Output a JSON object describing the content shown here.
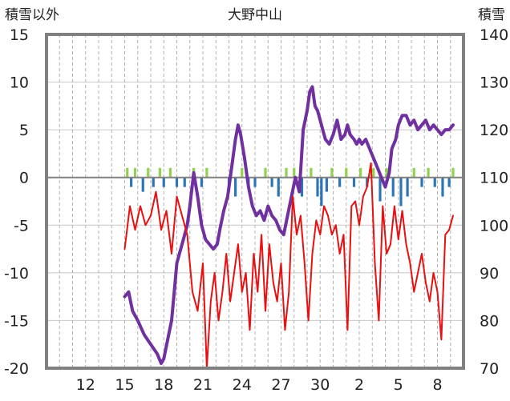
{
  "chart_data": {
    "type": "line",
    "title": "大野中山",
    "left_axis": {
      "label": "積雪以外",
      "ylim": [
        -20,
        15
      ],
      "ticks": [
        15,
        10,
        5,
        0,
        -5,
        -10,
        -15,
        -20
      ]
    },
    "right_axis": {
      "label": "積雪",
      "ylim": [
        70,
        140
      ],
      "ticks": [
        140,
        130,
        120,
        110,
        100,
        90,
        80,
        70
      ]
    },
    "x_ticks": [
      {
        "label": "12",
        "day": 3
      },
      {
        "label": "15",
        "day": 6
      },
      {
        "label": "18",
        "day": 9
      },
      {
        "label": "21",
        "day": 12
      },
      {
        "label": "24",
        "day": 15
      },
      {
        "label": "27",
        "day": 18
      },
      {
        "label": "30",
        "day": 21
      },
      {
        "label": "2",
        "day": 24
      },
      {
        "label": "5",
        "day": 27
      },
      {
        "label": "8",
        "day": 30
      }
    ],
    "x_range": [
      0,
      32
    ],
    "grid": true,
    "colors": {
      "snow_depth": "#7030A0",
      "temperature": "#E81010",
      "positive_bars": "#92D050",
      "negative_bars": "#2E75B6"
    },
    "series": [
      {
        "axis": "right",
        "color": "#7030A0",
        "x": [
          6.0,
          6.3,
          6.6,
          7.0,
          7.5,
          8.0,
          8.5,
          8.8,
          9.0,
          9.3,
          9.6,
          9.8,
          10.0,
          10.3,
          10.6,
          10.8,
          11.0,
          11.3,
          11.6,
          11.9,
          12.2,
          12.5,
          12.8,
          13.1,
          13.3,
          13.6,
          13.9,
          14.2,
          14.5,
          14.7,
          14.9,
          15.2,
          15.5,
          15.8,
          16.1,
          16.4,
          16.7,
          17.0,
          17.3,
          17.6,
          17.9,
          18.2,
          18.5,
          18.8,
          19.1,
          19.4,
          19.7,
          20.0,
          20.2,
          20.4,
          20.6,
          20.8,
          21.0,
          21.2,
          21.4,
          21.7,
          22.0,
          22.3,
          22.6,
          22.9,
          23.1,
          23.3,
          23.6,
          23.8,
          24.0,
          24.2,
          24.5,
          24.8,
          25.1,
          25.4,
          25.7,
          26.0,
          26.3,
          26.5,
          26.8,
          27.0,
          27.3,
          27.6,
          27.9,
          28.2,
          28.5,
          28.8,
          29.1,
          29.4,
          29.7,
          30.0,
          30.3,
          30.6,
          30.9,
          31.2
        ],
        "values": [
          85,
          86,
          82,
          80,
          77,
          75,
          73,
          71,
          72,
          76,
          80,
          86,
          92,
          95,
          98,
          100,
          104,
          111,
          106,
          100,
          97,
          96,
          95,
          96,
          99,
          103,
          106,
          112,
          118,
          121,
          119,
          114,
          108,
          104,
          102,
          103,
          101,
          104,
          102,
          101,
          99,
          98,
          102,
          106,
          110,
          107,
          120,
          124,
          128,
          129,
          125,
          124,
          122,
          120,
          118,
          117,
          119,
          122,
          118,
          119,
          121,
          119,
          118,
          117,
          118,
          117,
          118,
          116,
          114,
          112,
          110,
          108,
          111,
          116,
          118,
          121,
          123,
          123,
          121,
          122,
          120,
          121,
          122,
          120,
          121,
          120,
          119,
          120,
          120,
          121
        ]
      },
      {
        "axis": "left",
        "color": "#E81010",
        "x": [
          6.0,
          6.4,
          6.8,
          7.2,
          7.6,
          8.0,
          8.4,
          8.8,
          9.2,
          9.6,
          10.0,
          10.4,
          10.8,
          11.2,
          11.6,
          12.0,
          12.3,
          12.6,
          12.9,
          13.2,
          13.5,
          13.8,
          14.1,
          14.4,
          14.7,
          15.0,
          15.3,
          15.6,
          15.9,
          16.2,
          16.5,
          16.8,
          17.1,
          17.4,
          17.7,
          18.0,
          18.3,
          18.6,
          18.9,
          19.2,
          19.5,
          19.8,
          20.1,
          20.4,
          20.7,
          21.0,
          21.3,
          21.6,
          21.9,
          22.2,
          22.5,
          22.8,
          23.1,
          23.4,
          23.7,
          24.0,
          24.3,
          24.6,
          24.9,
          25.2,
          25.5,
          25.8,
          26.1,
          26.4,
          26.7,
          27.0,
          27.3,
          27.6,
          27.9,
          28.2,
          28.5,
          28.8,
          29.1,
          29.4,
          29.7,
          30.0,
          30.3,
          30.6,
          30.9,
          31.2
        ],
        "values": [
          -7.5,
          -3.0,
          -5.5,
          -3.0,
          -5.0,
          -4.0,
          -1.5,
          -5.5,
          -3.5,
          -8.0,
          -2.0,
          -4.0,
          -6.0,
          -12.0,
          -14.0,
          -9.0,
          -20.0,
          -13.0,
          -10.0,
          -15.0,
          -12.0,
          -8.0,
          -13.0,
          -10.0,
          -7.0,
          -12.0,
          -10.0,
          -16.0,
          -8.0,
          -12.0,
          -6.0,
          -14.0,
          -7.0,
          -11.0,
          -13.0,
          -9.0,
          -16.0,
          -12.0,
          -2.0,
          -6.0,
          -4.0,
          -9.0,
          -15.0,
          -8.0,
          -4.5,
          -6.0,
          -3.0,
          -4.0,
          -6.0,
          -5.0,
          -8.0,
          -6.0,
          -16.0,
          -3.0,
          -2.5,
          -5.0,
          -2.0,
          -1.0,
          1.5,
          -9.0,
          -15.0,
          -3.0,
          -8.0,
          -7.0,
          -3.0,
          -6.5,
          -3.5,
          -7.0,
          -9.0,
          -12.0,
          -10.0,
          -8.0,
          -11.0,
          -13.0,
          -10.0,
          -12.0,
          -17.0,
          -6.0,
          -5.5,
          -4.0
        ]
      }
    ],
    "bars": {
      "axis": "left",
      "x": [
        6.2,
        6.5,
        6.8,
        7.4,
        7.8,
        8.2,
        8.7,
        9.0,
        9.5,
        10.0,
        10.6,
        11.3,
        11.9,
        12.3,
        14.0,
        14.5,
        15.0,
        15.5,
        16.0,
        16.8,
        17.3,
        17.8,
        18.4,
        19.0,
        19.6,
        20.3,
        20.8,
        21.1,
        21.5,
        21.9,
        22.5,
        23.0,
        23.6,
        24.1,
        24.6,
        25.1,
        25.6,
        26.1,
        26.6,
        27.2,
        27.7,
        28.2,
        28.8,
        29.3,
        29.8,
        30.4,
        30.9,
        31.2
      ],
      "values": [
        1.0,
        -1.0,
        1.0,
        -1.5,
        1.0,
        -1.0,
        1.0,
        -1.0,
        1.0,
        -1.0,
        -1.0,
        1.0,
        -1.0,
        1.0,
        -1.5,
        -2.0,
        1.0,
        -1.0,
        -1.0,
        1.0,
        -1.0,
        -2.0,
        1.0,
        1.0,
        -2.0,
        1.0,
        -2.0,
        -3.0,
        -1.5,
        1.0,
        -1.0,
        1.0,
        -1.0,
        1.0,
        -1.0,
        1.0,
        -2.5,
        1.0,
        -2.0,
        -3.0,
        -2.0,
        1.0,
        -1.0,
        1.0,
        -1.0,
        -2.0,
        -1.0,
        1.0
      ]
    }
  }
}
